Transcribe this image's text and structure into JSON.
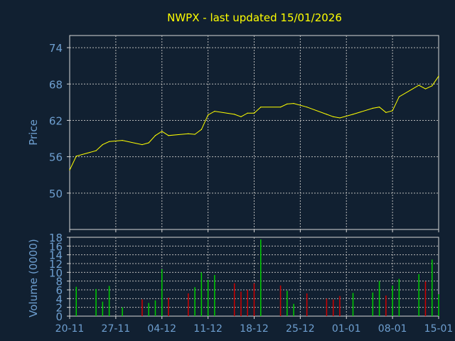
{
  "colors": {
    "background": "#112031",
    "title": "#ffff00",
    "axis_text": "#6e9fd0",
    "frame": "#d8d8d8",
    "grid": "#b9b9b9",
    "price_line": "#ffff00",
    "volume_up": "#00cc00",
    "volume_down": "#cc0000"
  },
  "chart_data": [
    {
      "type": "line",
      "title": "NWPX - last updated 15/01/2026",
      "xlabel": "",
      "ylabel": "Price",
      "ylim": [
        44,
        76
      ],
      "yticks": [
        50,
        56,
        62,
        68,
        74
      ],
      "xlim": [
        "2025-11-20",
        "2026-01-15"
      ],
      "xticks": [
        "2025-11-20",
        "2025-11-27",
        "2025-12-04",
        "2025-12-11",
        "2025-12-18",
        "2025-12-25",
        "2026-01-01",
        "2026-01-08",
        "2026-01-15"
      ],
      "xtick_labels": [
        "20-11",
        "27-11",
        "04-12",
        "11-12",
        "18-12",
        "25-12",
        "01-01",
        "08-01",
        "15-01"
      ],
      "grid": true,
      "series": [
        {
          "x": [
            "2025-11-20",
            "2025-11-21",
            "2025-11-24",
            "2025-11-25",
            "2025-11-26",
            "2025-11-28",
            "2025-12-01",
            "2025-12-02",
            "2025-12-03",
            "2025-12-04",
            "2025-12-05",
            "2025-12-08",
            "2025-12-09",
            "2025-12-10",
            "2025-12-11",
            "2025-12-12",
            "2025-12-15",
            "2025-12-16",
            "2025-12-17",
            "2025-12-18",
            "2025-12-19",
            "2025-12-22",
            "2025-12-23",
            "2025-12-24",
            "2025-12-26",
            "2025-12-29",
            "2025-12-30",
            "2025-12-31",
            "2026-01-02",
            "2026-01-05",
            "2026-01-06",
            "2026-01-07",
            "2026-01-08",
            "2026-01-09",
            "2026-01-12",
            "2026-01-13",
            "2026-01-14",
            "2026-01-15"
          ],
          "values": [
            53.8,
            56.1,
            57.0,
            58.0,
            58.5,
            58.7,
            58.0,
            58.3,
            59.5,
            60.2,
            59.5,
            59.8,
            59.7,
            60.5,
            62.9,
            63.5,
            63.0,
            62.6,
            63.2,
            63.2,
            64.2,
            64.2,
            64.7,
            64.8,
            64.2,
            63.0,
            62.6,
            62.4,
            63.0,
            64.0,
            64.2,
            63.3,
            63.6,
            65.9,
            67.8,
            67.2,
            67.7,
            69.3
          ]
        }
      ]
    },
    {
      "type": "bar",
      "xlabel": "",
      "ylabel": "Volume (0000)",
      "ylim": [
        0,
        18
      ],
      "yticks": [
        0,
        2,
        4,
        6,
        8,
        10,
        12,
        14,
        16,
        18
      ],
      "grid": true,
      "x": [
        "2025-11-21",
        "2025-11-24",
        "2025-11-25",
        "2025-11-26",
        "2025-11-28",
        "2025-12-01",
        "2025-12-02",
        "2025-12-03",
        "2025-12-04",
        "2025-12-05",
        "2025-12-08",
        "2025-12-09",
        "2025-12-10",
        "2025-12-11",
        "2025-12-12",
        "2025-12-15",
        "2025-12-16",
        "2025-12-17",
        "2025-12-18",
        "2025-12-19",
        "2025-12-22",
        "2025-12-23",
        "2025-12-24",
        "2025-12-26",
        "2025-12-29",
        "2025-12-30",
        "2025-12-31",
        "2026-01-02",
        "2026-01-05",
        "2026-01-06",
        "2026-01-07",
        "2026-01-08",
        "2026-01-09",
        "2026-01-12",
        "2026-01-13",
        "2026-01-14",
        "2026-01-15"
      ],
      "values": [
        6.7,
        6.2,
        3.3,
        6.9,
        2.0,
        3.8,
        3.0,
        3.6,
        10.7,
        4.2,
        5.2,
        6.6,
        10.0,
        8.3,
        9.4,
        7.5,
        5.6,
        6.0,
        7.5,
        17.5,
        7.0,
        5.8,
        2.8,
        5.2,
        4.0,
        3.8,
        4.6,
        5.3,
        5.4,
        8.0,
        4.7,
        7.0,
        8.5,
        9.6,
        7.9,
        12.9,
        5.0
      ],
      "direction": [
        "up",
        "up",
        "up",
        "up",
        "up",
        "down",
        "up",
        "up",
        "up",
        "down",
        "down",
        "up",
        "up",
        "up",
        "up",
        "down",
        "down",
        "down",
        "down",
        "up",
        "down",
        "up",
        "up",
        "down",
        "down",
        "down",
        "down",
        "up",
        "up",
        "up",
        "down",
        "up",
        "up",
        "up",
        "down",
        "up",
        "up"
      ]
    }
  ]
}
